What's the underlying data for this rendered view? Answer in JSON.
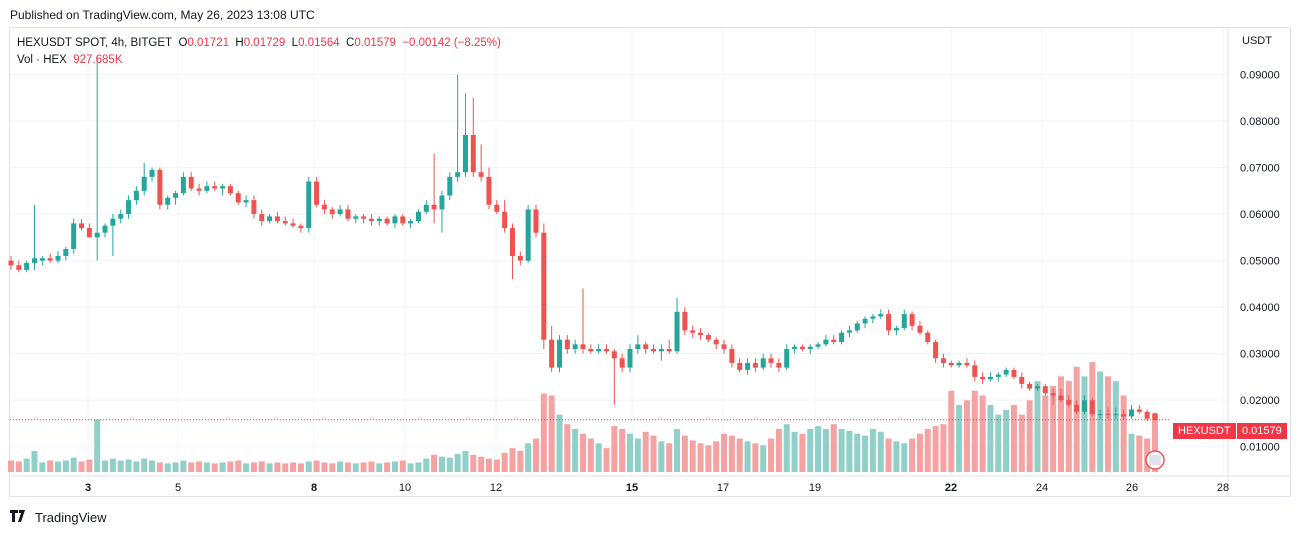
{
  "header": {
    "published": "Published on TradingView.com, May 26, 2023 13:08 UTC"
  },
  "legend": {
    "symbol": "HEXUSDT SPOT, 4h, BITGET",
    "open_label": "O",
    "open": "0.01721",
    "high_label": "H",
    "high": "0.01729",
    "low_label": "L",
    "low": "0.01564",
    "close_label": "C",
    "close": "0.01579",
    "change": "−0.00142 (−8.25%)",
    "vol_label": "Vol · HEX",
    "vol_value": "927.685K"
  },
  "badge": {
    "symbol": "HEXUSDT",
    "price": "0.01579"
  },
  "footer": {
    "brand": "TradingView"
  },
  "colors": {
    "up": "#26a69a",
    "down": "#ef5350",
    "up_vol": "#91d0c8",
    "down_vol": "#f5a3a2",
    "badge": "#f23645"
  },
  "chart_data": {
    "type": "candlestick",
    "currency": "USDT",
    "y_ticks": [
      "0.09000",
      "0.08000",
      "0.07000",
      "0.06000",
      "0.05000",
      "0.04000",
      "0.03000",
      "0.02000",
      "0.01000"
    ],
    "ylim": [
      0.0037,
      0.1
    ],
    "x_ticks": [
      "3",
      "5",
      "8",
      "10",
      "12",
      "15",
      "17",
      "19",
      "22",
      "24",
      "26",
      "28"
    ],
    "last_price": 0.01579,
    "grid": true,
    "ohlc": [
      [
        0.05,
        0.051,
        0.048,
        0.049
      ],
      [
        0.049,
        0.05,
        0.0475,
        0.048
      ],
      [
        0.048,
        0.05,
        0.0475,
        0.0495
      ],
      [
        0.0495,
        0.062,
        0.048,
        0.0505
      ],
      [
        0.05,
        0.051,
        0.049,
        0.0505
      ],
      [
        0.0505,
        0.0515,
        0.0495,
        0.05
      ],
      [
        0.05,
        0.052,
        0.0495,
        0.051
      ],
      [
        0.051,
        0.053,
        0.05,
        0.0525
      ],
      [
        0.0525,
        0.059,
        0.0515,
        0.058
      ],
      [
        0.058,
        0.059,
        0.0565,
        0.057
      ],
      [
        0.057,
        0.058,
        0.055,
        0.055
      ],
      [
        0.055,
        0.094,
        0.05,
        0.056
      ],
      [
        0.056,
        0.058,
        0.055,
        0.0575
      ],
      [
        0.0575,
        0.06,
        0.051,
        0.059
      ],
      [
        0.059,
        0.061,
        0.058,
        0.06
      ],
      [
        0.06,
        0.064,
        0.059,
        0.063
      ],
      [
        0.063,
        0.066,
        0.062,
        0.065
      ],
      [
        0.065,
        0.071,
        0.064,
        0.068
      ],
      [
        0.068,
        0.07,
        0.067,
        0.0695
      ],
      [
        0.0695,
        0.07,
        0.061,
        0.062
      ],
      [
        0.062,
        0.064,
        0.061,
        0.0635
      ],
      [
        0.0635,
        0.065,
        0.062,
        0.0645
      ],
      [
        0.0645,
        0.069,
        0.064,
        0.068
      ],
      [
        0.068,
        0.069,
        0.065,
        0.0655
      ],
      [
        0.0655,
        0.0665,
        0.064,
        0.065
      ],
      [
        0.065,
        0.067,
        0.0645,
        0.066
      ],
      [
        0.066,
        0.067,
        0.065,
        0.0655
      ],
      [
        0.0655,
        0.0665,
        0.064,
        0.066
      ],
      [
        0.066,
        0.0665,
        0.064,
        0.0645
      ],
      [
        0.0645,
        0.065,
        0.062,
        0.0625
      ],
      [
        0.0625,
        0.064,
        0.0615,
        0.063
      ],
      [
        0.063,
        0.064,
        0.059,
        0.06
      ],
      [
        0.06,
        0.061,
        0.0575,
        0.0585
      ],
      [
        0.0585,
        0.06,
        0.058,
        0.0595
      ],
      [
        0.0595,
        0.0605,
        0.058,
        0.0585
      ],
      [
        0.0585,
        0.0595,
        0.0575,
        0.058
      ],
      [
        0.058,
        0.059,
        0.057,
        0.0575
      ],
      [
        0.0575,
        0.058,
        0.056,
        0.057
      ],
      [
        0.057,
        0.068,
        0.056,
        0.067
      ],
      [
        0.067,
        0.068,
        0.0615,
        0.062
      ],
      [
        0.062,
        0.063,
        0.06,
        0.061
      ],
      [
        0.061,
        0.0615,
        0.059,
        0.06
      ],
      [
        0.06,
        0.062,
        0.0595,
        0.061
      ],
      [
        0.061,
        0.062,
        0.0585,
        0.059
      ],
      [
        0.059,
        0.06,
        0.058,
        0.0595
      ],
      [
        0.0595,
        0.06,
        0.058,
        0.059
      ],
      [
        0.059,
        0.06,
        0.0575,
        0.0585
      ],
      [
        0.0585,
        0.0595,
        0.0575,
        0.059
      ],
      [
        0.059,
        0.0595,
        0.0575,
        0.058
      ],
      [
        0.058,
        0.06,
        0.057,
        0.0595
      ],
      [
        0.0595,
        0.06,
        0.0575,
        0.058
      ],
      [
        0.058,
        0.059,
        0.057,
        0.0585
      ],
      [
        0.0585,
        0.061,
        0.058,
        0.0605
      ],
      [
        0.0605,
        0.063,
        0.06,
        0.062
      ],
      [
        0.062,
        0.073,
        0.058,
        0.061
      ],
      [
        0.061,
        0.065,
        0.056,
        0.064
      ],
      [
        0.064,
        0.069,
        0.063,
        0.068
      ],
      [
        0.068,
        0.09,
        0.067,
        0.069
      ],
      [
        0.069,
        0.086,
        0.068,
        0.077
      ],
      [
        0.077,
        0.085,
        0.068,
        0.069
      ],
      [
        0.069,
        0.075,
        0.067,
        0.068
      ],
      [
        0.068,
        0.07,
        0.061,
        0.062
      ],
      [
        0.062,
        0.063,
        0.06,
        0.0605
      ],
      [
        0.0605,
        0.063,
        0.056,
        0.057
      ],
      [
        0.057,
        0.058,
        0.046,
        0.051
      ],
      [
        0.051,
        0.052,
        0.049,
        0.05
      ],
      [
        0.05,
        0.062,
        0.0495,
        0.061
      ],
      [
        0.061,
        0.062,
        0.055,
        0.056
      ],
      [
        0.056,
        0.058,
        0.031,
        0.033
      ],
      [
        0.033,
        0.036,
        0.026,
        0.027
      ],
      [
        0.027,
        0.034,
        0.026,
        0.033
      ],
      [
        0.033,
        0.034,
        0.03,
        0.031
      ],
      [
        0.031,
        0.033,
        0.03,
        0.032
      ],
      [
        0.032,
        0.044,
        0.03,
        0.031
      ],
      [
        0.031,
        0.032,
        0.03,
        0.0305
      ],
      [
        0.0305,
        0.032,
        0.03,
        0.031
      ],
      [
        0.031,
        0.032,
        0.03,
        0.0305
      ],
      [
        0.0305,
        0.031,
        0.019,
        0.029
      ],
      [
        0.029,
        0.03,
        0.026,
        0.027
      ],
      [
        0.027,
        0.032,
        0.026,
        0.031
      ],
      [
        0.031,
        0.034,
        0.03,
        0.032
      ],
      [
        0.032,
        0.0325,
        0.03,
        0.031
      ],
      [
        0.031,
        0.032,
        0.03,
        0.0305
      ],
      [
        0.0305,
        0.032,
        0.0285,
        0.031
      ],
      [
        0.031,
        0.033,
        0.03,
        0.0305
      ],
      [
        0.0305,
        0.042,
        0.03,
        0.039
      ],
      [
        0.039,
        0.04,
        0.034,
        0.035
      ],
      [
        0.035,
        0.036,
        0.0335,
        0.0345
      ],
      [
        0.0345,
        0.0355,
        0.033,
        0.034
      ],
      [
        0.034,
        0.0345,
        0.0325,
        0.033
      ],
      [
        0.033,
        0.0335,
        0.031,
        0.032
      ],
      [
        0.032,
        0.033,
        0.03,
        0.031
      ],
      [
        0.031,
        0.032,
        0.027,
        0.028
      ],
      [
        0.028,
        0.029,
        0.026,
        0.0265
      ],
      [
        0.0265,
        0.029,
        0.0255,
        0.028
      ],
      [
        0.028,
        0.029,
        0.026,
        0.027
      ],
      [
        0.027,
        0.03,
        0.0265,
        0.029
      ],
      [
        0.029,
        0.03,
        0.027,
        0.028
      ],
      [
        0.028,
        0.029,
        0.026,
        0.027
      ],
      [
        0.027,
        0.032,
        0.0265,
        0.031
      ],
      [
        0.031,
        0.032,
        0.03,
        0.0315
      ],
      [
        0.0315,
        0.032,
        0.0305,
        0.031
      ],
      [
        0.031,
        0.032,
        0.03,
        0.0315
      ],
      [
        0.0315,
        0.0325,
        0.031,
        0.032
      ],
      [
        0.032,
        0.034,
        0.0315,
        0.033
      ],
      [
        0.033,
        0.034,
        0.032,
        0.0325
      ],
      [
        0.0325,
        0.035,
        0.032,
        0.0345
      ],
      [
        0.0345,
        0.036,
        0.0335,
        0.035
      ],
      [
        0.035,
        0.037,
        0.0345,
        0.0365
      ],
      [
        0.0365,
        0.038,
        0.0355,
        0.0375
      ],
      [
        0.0375,
        0.0385,
        0.0365,
        0.038
      ],
      [
        0.038,
        0.0395,
        0.0375,
        0.0385
      ],
      [
        0.0385,
        0.0395,
        0.034,
        0.035
      ],
      [
        0.035,
        0.036,
        0.034,
        0.0355
      ],
      [
        0.0355,
        0.0395,
        0.035,
        0.0385
      ],
      [
        0.0385,
        0.039,
        0.035,
        0.036
      ],
      [
        0.036,
        0.037,
        0.034,
        0.0345
      ],
      [
        0.0345,
        0.035,
        0.032,
        0.0325
      ],
      [
        0.0325,
        0.033,
        0.028,
        0.029
      ],
      [
        0.029,
        0.03,
        0.027,
        0.028
      ],
      [
        0.028,
        0.0285,
        0.027,
        0.0275
      ],
      [
        0.0275,
        0.0285,
        0.027,
        0.028
      ],
      [
        0.028,
        0.029,
        0.027,
        0.0275
      ],
      [
        0.0275,
        0.0285,
        0.024,
        0.025
      ],
      [
        0.025,
        0.026,
        0.0235,
        0.0245
      ],
      [
        0.0245,
        0.026,
        0.024,
        0.025
      ],
      [
        0.025,
        0.026,
        0.024,
        0.0255
      ],
      [
        0.0255,
        0.027,
        0.025,
        0.0265
      ],
      [
        0.0265,
        0.027,
        0.0245,
        0.025
      ],
      [
        0.025,
        0.026,
        0.0225,
        0.0235
      ],
      [
        0.0235,
        0.024,
        0.022,
        0.0225
      ],
      [
        0.0225,
        0.0235,
        0.022,
        0.023
      ],
      [
        0.023,
        0.0235,
        0.021,
        0.0215
      ],
      [
        0.0215,
        0.0225,
        0.019,
        0.021
      ],
      [
        0.021,
        0.0225,
        0.0195,
        0.02
      ],
      [
        0.02,
        0.021,
        0.0185,
        0.019
      ],
      [
        0.019,
        0.02,
        0.017,
        0.0175
      ],
      [
        0.0175,
        0.021,
        0.017,
        0.02
      ],
      [
        0.02,
        0.0205,
        0.0165,
        0.017
      ],
      [
        0.017,
        0.018,
        0.016,
        0.017
      ],
      [
        0.017,
        0.0185,
        0.016,
        0.0168
      ],
      [
        0.0168,
        0.0185,
        0.016,
        0.017
      ],
      [
        0.017,
        0.018,
        0.016,
        0.0165
      ],
      [
        0.0165,
        0.019,
        0.016,
        0.018
      ],
      [
        0.018,
        0.019,
        0.017,
        0.0175
      ],
      [
        0.0175,
        0.018,
        0.0155,
        0.016
      ],
      [
        0.0172,
        0.0173,
        0.0156,
        0.0158
      ]
    ],
    "volume": [
      12,
      11,
      14,
      22,
      10,
      12,
      11,
      12,
      15,
      11,
      13,
      55,
      12,
      14,
      12,
      13,
      11,
      14,
      12,
      10,
      9,
      10,
      12,
      10,
      11,
      10,
      9,
      10,
      11,
      12,
      9,
      10,
      11,
      9,
      10,
      9,
      10,
      9,
      11,
      12,
      10,
      9,
      11,
      10,
      9,
      10,
      11,
      9,
      10,
      11,
      12,
      9,
      10,
      14,
      18,
      16,
      15,
      19,
      22,
      18,
      16,
      14,
      13,
      20,
      25,
      22,
      30,
      35,
      82,
      80,
      60,
      50,
      45,
      40,
      35,
      30,
      25,
      48,
      45,
      40,
      35,
      42,
      38,
      32,
      30,
      45,
      38,
      33,
      30,
      28,
      32,
      40,
      38,
      35,
      32,
      30,
      28,
      35,
      45,
      50,
      42,
      40,
      45,
      48,
      45,
      50,
      45,
      43,
      40,
      38,
      45,
      42,
      35,
      32,
      30,
      35,
      40,
      45,
      48,
      50,
      85,
      70,
      75,
      85,
      80,
      70,
      60,
      65,
      70,
      60,
      75,
      95,
      80,
      90,
      100,
      95,
      110,
      100,
      115,
      105,
      100,
      95,
      80,
      40,
      38,
      35,
      60
    ]
  }
}
